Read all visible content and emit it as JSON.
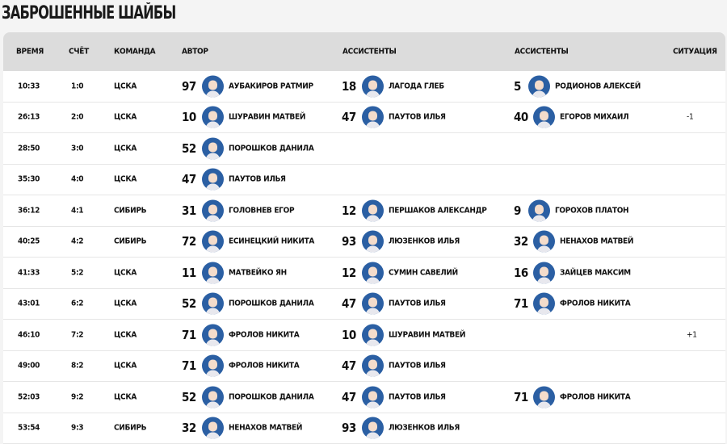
{
  "title": "ЗАБРОШЕННЫЕ ШАЙБЫ",
  "headers": {
    "time": "ВРЕМЯ",
    "score": "СЧЁТ",
    "team": "КОМАНДА",
    "author": "АВТОР",
    "assist1": "АССИСТЕНТЫ",
    "assist2": "АССИСТЕНТЫ",
    "situation": "СИТУАЦИЯ"
  },
  "rows": [
    {
      "time": "10:33",
      "score": "1:0",
      "team": "ЦСКА",
      "a_num": "97",
      "a_name": "АУБАКИРОВ РАТМИР",
      "s1_num": "18",
      "s1_name": "ЛАГОДА ГЛЕБ",
      "s2_num": "5",
      "s2_name": "РОДИОНОВ АЛЕКСЕЙ",
      "sit": ""
    },
    {
      "time": "26:13",
      "score": "2:0",
      "team": "ЦСКА",
      "a_num": "10",
      "a_name": "ШУРАВИН МАТВЕЙ",
      "s1_num": "47",
      "s1_name": "ПАУТОВ ИЛЬЯ",
      "s2_num": "40",
      "s2_name": "ЕГОРОВ МИХАИЛ",
      "sit": "-1"
    },
    {
      "time": "28:50",
      "score": "3:0",
      "team": "ЦСКА",
      "a_num": "52",
      "a_name": "ПОРОШКОВ ДАНИЛА",
      "s1_num": "",
      "s1_name": "",
      "s2_num": "",
      "s2_name": "",
      "sit": ""
    },
    {
      "time": "35:30",
      "score": "4:0",
      "team": "ЦСКА",
      "a_num": "47",
      "a_name": "ПАУТОВ ИЛЬЯ",
      "s1_num": "",
      "s1_name": "",
      "s2_num": "",
      "s2_name": "",
      "sit": ""
    },
    {
      "time": "36:12",
      "score": "4:1",
      "team": "СИБИРЬ",
      "a_num": "31",
      "a_name": "ГОЛОВНЕВ ЕГОР",
      "s1_num": "12",
      "s1_name": "ПЕРШАКОВ АЛЕКСАНДР",
      "s2_num": "9",
      "s2_name": "ГОРОХОВ ПЛАТОН",
      "sit": ""
    },
    {
      "time": "40:25",
      "score": "4:2",
      "team": "СИБИРЬ",
      "a_num": "72",
      "a_name": "ЕСИНЕЦКИЙ НИКИТА",
      "s1_num": "93",
      "s1_name": "ЛЮЗЕНКОВ ИЛЬЯ",
      "s2_num": "32",
      "s2_name": "НЕНАХОВ МАТВЕЙ",
      "sit": ""
    },
    {
      "time": "41:33",
      "score": "5:2",
      "team": "ЦСКА",
      "a_num": "11",
      "a_name": "МАТВЕЙКО ЯН",
      "s1_num": "12",
      "s1_name": "СУМИН САВЕЛИЙ",
      "s2_num": "16",
      "s2_name": "ЗАЙЦЕВ МАКСИМ",
      "sit": ""
    },
    {
      "time": "43:01",
      "score": "6:2",
      "team": "ЦСКА",
      "a_num": "52",
      "a_name": "ПОРОШКОВ ДАНИЛА",
      "s1_num": "47",
      "s1_name": "ПАУТОВ ИЛЬЯ",
      "s2_num": "71",
      "s2_name": "ФРОЛОВ НИКИТА",
      "sit": ""
    },
    {
      "time": "46:10",
      "score": "7:2",
      "team": "ЦСКА",
      "a_num": "71",
      "a_name": "ФРОЛОВ НИКИТА",
      "s1_num": "10",
      "s1_name": "ШУРАВИН МАТВЕЙ",
      "s2_num": "",
      "s2_name": "",
      "sit": "+1"
    },
    {
      "time": "49:00",
      "score": "8:2",
      "team": "ЦСКА",
      "a_num": "71",
      "a_name": "ФРОЛОВ НИКИТА",
      "s1_num": "47",
      "s1_name": "ПАУТОВ ИЛЬЯ",
      "s2_num": "",
      "s2_name": "",
      "sit": ""
    },
    {
      "time": "52:03",
      "score": "9:2",
      "team": "ЦСКА",
      "a_num": "52",
      "a_name": "ПОРОШКОВ ДАНИЛА",
      "s1_num": "47",
      "s1_name": "ПАУТОВ ИЛЬЯ",
      "s2_num": "71",
      "s2_name": "ФРОЛОВ НИКИТА",
      "sit": ""
    },
    {
      "time": "53:54",
      "score": "9:3",
      "team": "СИБИРЬ",
      "a_num": "32",
      "a_name": "НЕНАХОВ МАТВЕЙ",
      "s1_num": "93",
      "s1_name": "ЛЮЗЕНКОВ ИЛЬЯ",
      "s2_num": "",
      "s2_name": "",
      "sit": ""
    }
  ]
}
